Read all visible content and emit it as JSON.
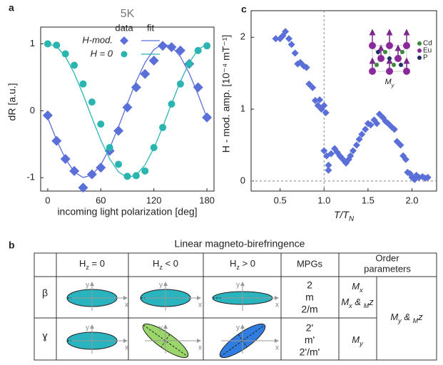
{
  "panel_labels": [
    "a",
    "c",
    "b"
  ],
  "chart_data": [
    {
      "type": "line",
      "title": "5K",
      "xlabel": "incoming light polarization [deg]",
      "ylabel": "dR [a.u.]",
      "x": [
        0,
        10,
        20,
        30,
        40,
        50,
        60,
        70,
        80,
        90,
        100,
        110,
        120,
        130,
        140,
        150,
        160,
        170,
        180
      ],
      "legend_header": [
        "data",
        "fit"
      ],
      "series": [
        {
          "name": "H-mod.",
          "color": "#5a6fd8",
          "marker": "diamond",
          "values": [
            -0.07,
            -0.45,
            -0.72,
            -0.9,
            -1.15,
            -0.95,
            -0.85,
            -0.6,
            -0.3,
            0.05,
            0.35,
            0.55,
            0.75,
            0.97,
            0.95,
            0.9,
            0.7,
            0.35,
            -0.1
          ],
          "fit": [
            -0.105,
            -0.438,
            -0.719,
            -0.914,
            -0.998,
            -0.961,
            -0.809,
            -0.559,
            -0.242,
            0.105,
            0.438,
            0.719,
            0.914,
            0.998,
            0.961,
            0.809,
            0.559,
            0.242,
            -0.105
          ]
        },
        {
          "name": "H = 0",
          "color": "#2bb5b0",
          "marker": "circle",
          "values": [
            1.0,
            0.98,
            0.85,
            0.68,
            0.4,
            0.13,
            -0.2,
            -0.55,
            -0.8,
            -0.98,
            -0.97,
            -0.9,
            -0.55,
            -0.25,
            0.1,
            0.4,
            0.7,
            0.9,
            0.97
          ],
          "fit": [
            0.998,
            0.961,
            0.809,
            0.559,
            0.242,
            -0.105,
            -0.438,
            -0.719,
            -0.914,
            -0.998,
            -0.961,
            -0.809,
            -0.559,
            -0.242,
            0.105,
            0.438,
            0.719,
            0.914,
            0.998
          ]
        }
      ],
      "xlim": [
        -8,
        188
      ],
      "ylim": [
        -1.2,
        1.25
      ],
      "xticks": [
        0,
        60,
        120,
        180
      ],
      "yticks": [
        -1,
        0,
        1
      ]
    },
    {
      "type": "scatter",
      "xlabel": [
        "T/T",
        "N"
      ],
      "ylabel": "H - mod. amp. [10⁻⁴ mT⁻¹]",
      "x": [
        0.45,
        0.5,
        0.53,
        0.56,
        0.6,
        0.63,
        0.67,
        0.7,
        0.73,
        0.77,
        0.8,
        0.83,
        0.87,
        0.9,
        0.93,
        0.95,
        0.97,
        1.0,
        1.02,
        1.0,
        1.03,
        1.05,
        1.05,
        1.08,
        1.12,
        1.15,
        1.18,
        1.2,
        1.23,
        1.25,
        1.28,
        1.3,
        1.33,
        1.37,
        1.4,
        1.43,
        1.47,
        1.5,
        1.53,
        1.57,
        1.6,
        1.63,
        1.67,
        1.7,
        1.73,
        1.77,
        1.8,
        1.83,
        1.87,
        1.9,
        1.93,
        1.95,
        1.98,
        2.0,
        2.03,
        2.05,
        2.08,
        2.12,
        2.15,
        2.18
      ],
      "series": [
        {
          "color": "#5a6fd8",
          "values": [
            1.98,
            1.98,
            2.02,
            2.08,
            1.98,
            1.9,
            1.78,
            1.63,
            1.65,
            1.6,
            1.58,
            1.35,
            1.3,
            1.12,
            1.05,
            1.13,
            1.0,
            1.05,
            0.95,
            0.42,
            0.35,
            0.22,
            0.15,
            0.38,
            0.45,
            0.4,
            0.35,
            0.32,
            0.28,
            0.25,
            0.3,
            0.35,
            0.42,
            0.5,
            0.58,
            0.65,
            0.72,
            0.8,
            0.78,
            0.85,
            0.8,
            0.93,
            0.88,
            0.83,
            0.8,
            0.75,
            0.72,
            0.55,
            0.5,
            0.35,
            0.3,
            0.12,
            0.1,
            0.05,
            0.02,
            0.08,
            0.05,
            0.06,
            0.04,
            0.05
          ]
        }
      ],
      "xlim": [
        0.17,
        2.28
      ],
      "ylim": [
        -0.14,
        2.37
      ],
      "xticks": [
        0.5,
        {
          "value": 1,
          "label": "1.0"
        },
        1.5,
        {
          "value": 2,
          "label": "2.0"
        }
      ],
      "yticks": [
        0,
        1,
        2
      ],
      "vlines": [
        1
      ],
      "hlines": [
        0
      ],
      "inset": {
        "labels": [
          "Cd",
          "Eu",
          "P"
        ],
        "moment": [
          "M",
          "y"
        ]
      }
    }
  ],
  "table": {
    "title": "Linear magneto-birefringence",
    "columns": [
      [
        "H",
        "z",
        " = 0"
      ],
      [
        "H",
        "z",
        " < 0"
      ],
      [
        "H",
        "z",
        " > 0"
      ]
    ],
    "mpgs_header": "MPGs",
    "order_header": [
      "Order",
      "parameters"
    ],
    "axis_labels": {
      "x": "x",
      "y": "y"
    },
    "rows": [
      {
        "label": "β",
        "mpgs": [
          "2",
          "m",
          "2/m"
        ],
        "order": [
          [
            "M",
            "x"
          ],
          [
            "M",
            "x",
            " & ",
            "M",
            "z"
          ]
        ]
      },
      {
        "label": "ɣ",
        "mpgs": [
          "2'",
          "m'",
          "2'/m'"
        ],
        "order": [
          [
            "M",
            "y"
          ]
        ]
      }
    ],
    "shared_order": [
      "M",
      "y",
      " & ",
      "M",
      "z"
    ]
  }
}
